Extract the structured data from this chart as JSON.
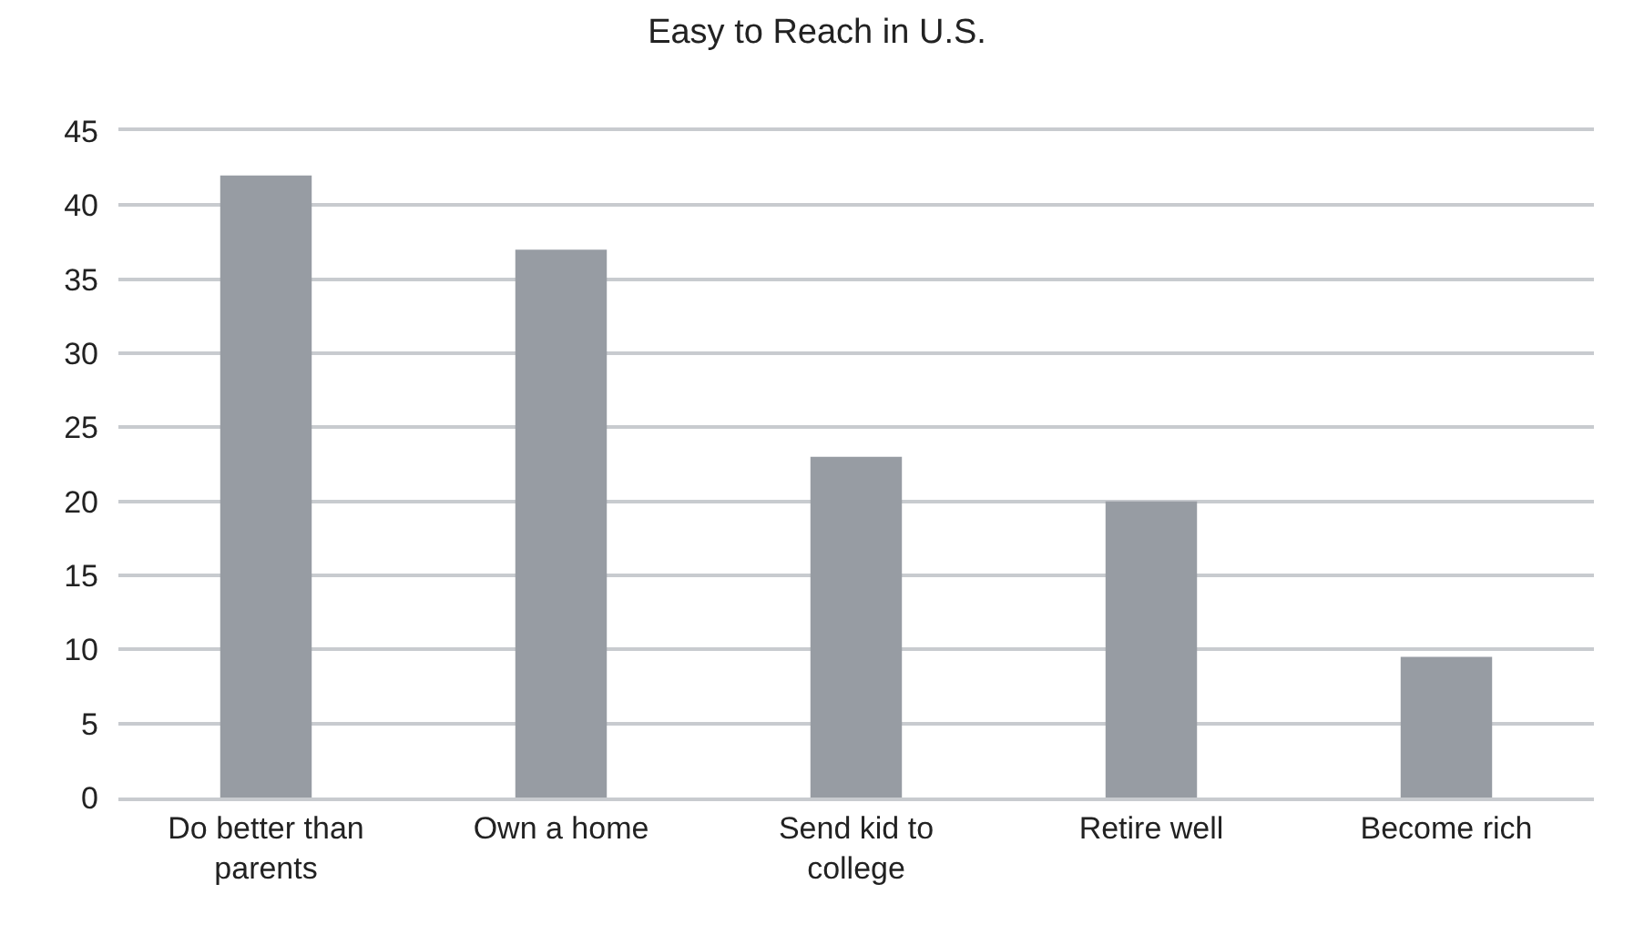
{
  "chart_data": {
    "type": "bar",
    "title": "Easy to Reach in U.S.",
    "categories": [
      "Do better than parents",
      "Own a home",
      "Send kid to college",
      "Retire well",
      "Become rich"
    ],
    "values": [
      42,
      37,
      23,
      20,
      9.5
    ],
    "color": "#979ca3",
    "ylim": [
      0,
      45
    ],
    "yticks": [
      0,
      5,
      10,
      15,
      20,
      25,
      30,
      35,
      40,
      45
    ],
    "grid": "y"
  }
}
